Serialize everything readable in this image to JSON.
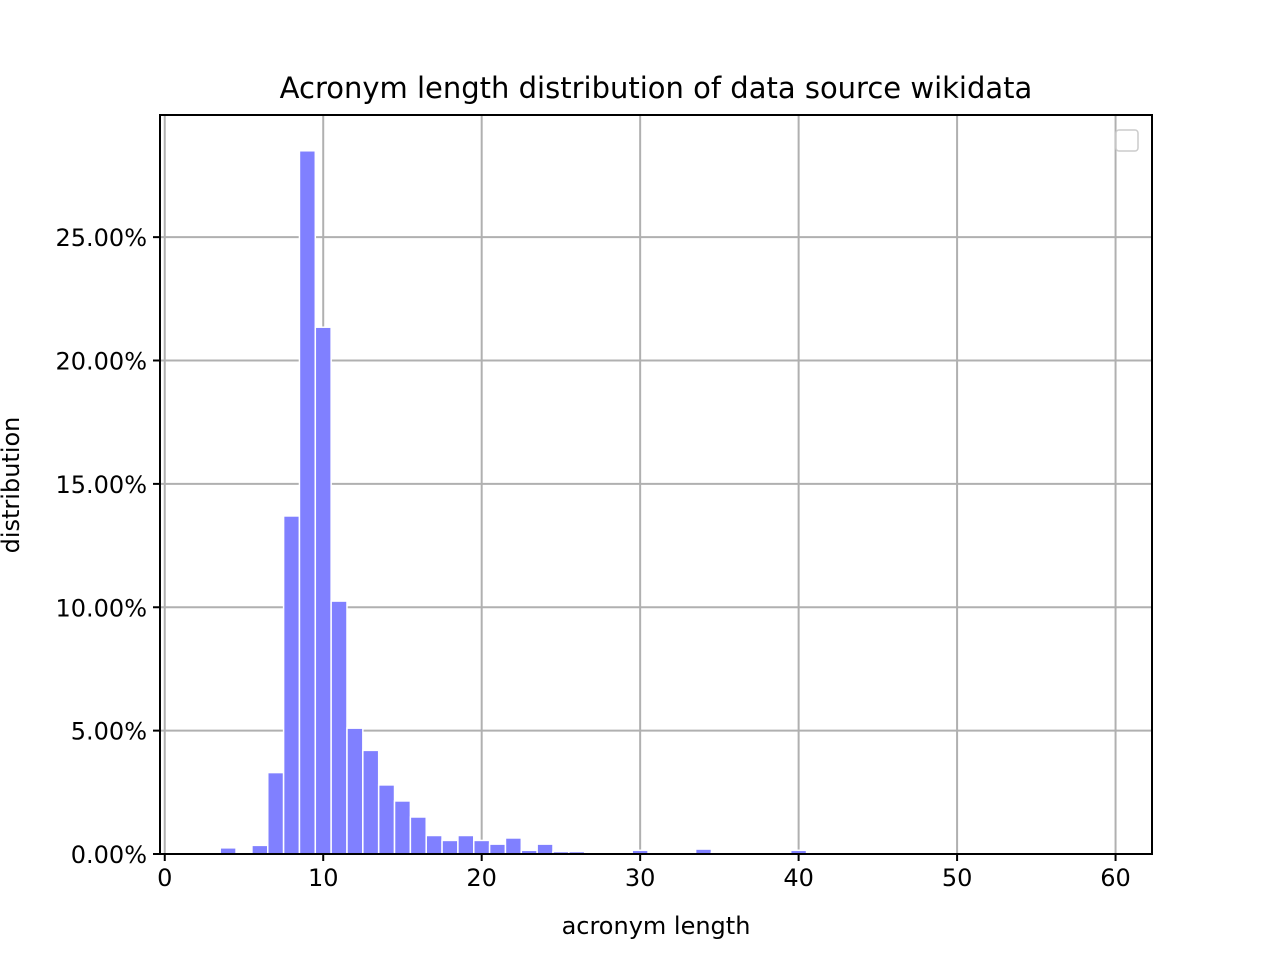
{
  "chart_data": {
    "type": "bar",
    "title": "Acronym length distribution of data source wikidata",
    "xlabel": "acronym length",
    "ylabel": "distribution",
    "xlim": [
      -0.3,
      62.3
    ],
    "ylim": [
      0,
      0.2995
    ],
    "xticks": [
      0,
      10,
      20,
      30,
      40,
      50,
      60
    ],
    "xtick_labels": [
      "0",
      "10",
      "20",
      "30",
      "40",
      "50",
      "60"
    ],
    "yticks": [
      0,
      0.05,
      0.1,
      0.15,
      0.2,
      0.25
    ],
    "ytick_labels": [
      "0.00%",
      "5.00%",
      "10.00%",
      "15.00%",
      "20.00%",
      "25.00%"
    ],
    "grid": true,
    "legend": "top-right, empty",
    "bar_color": "#8080ff",
    "bar_edge_color": "#ffffff",
    "bar_width": 1,
    "x": [
      4,
      6,
      7,
      8,
      9,
      10,
      11,
      12,
      13,
      14,
      15,
      16,
      17,
      18,
      19,
      20,
      21,
      22,
      23,
      24,
      25,
      26,
      29,
      30,
      32,
      34,
      35,
      38,
      40
    ],
    "values": [
      0.0025,
      0.0035,
      0.033,
      0.137,
      0.285,
      0.2135,
      0.1025,
      0.051,
      0.042,
      0.028,
      0.0215,
      0.015,
      0.0075,
      0.0055,
      0.0075,
      0.0055,
      0.004,
      0.0065,
      0.0015,
      0.004,
      0.001,
      0.001,
      0.0005,
      0.0015,
      0.0005,
      0.002,
      0.0005,
      0.0005,
      0.0015
    ]
  }
}
